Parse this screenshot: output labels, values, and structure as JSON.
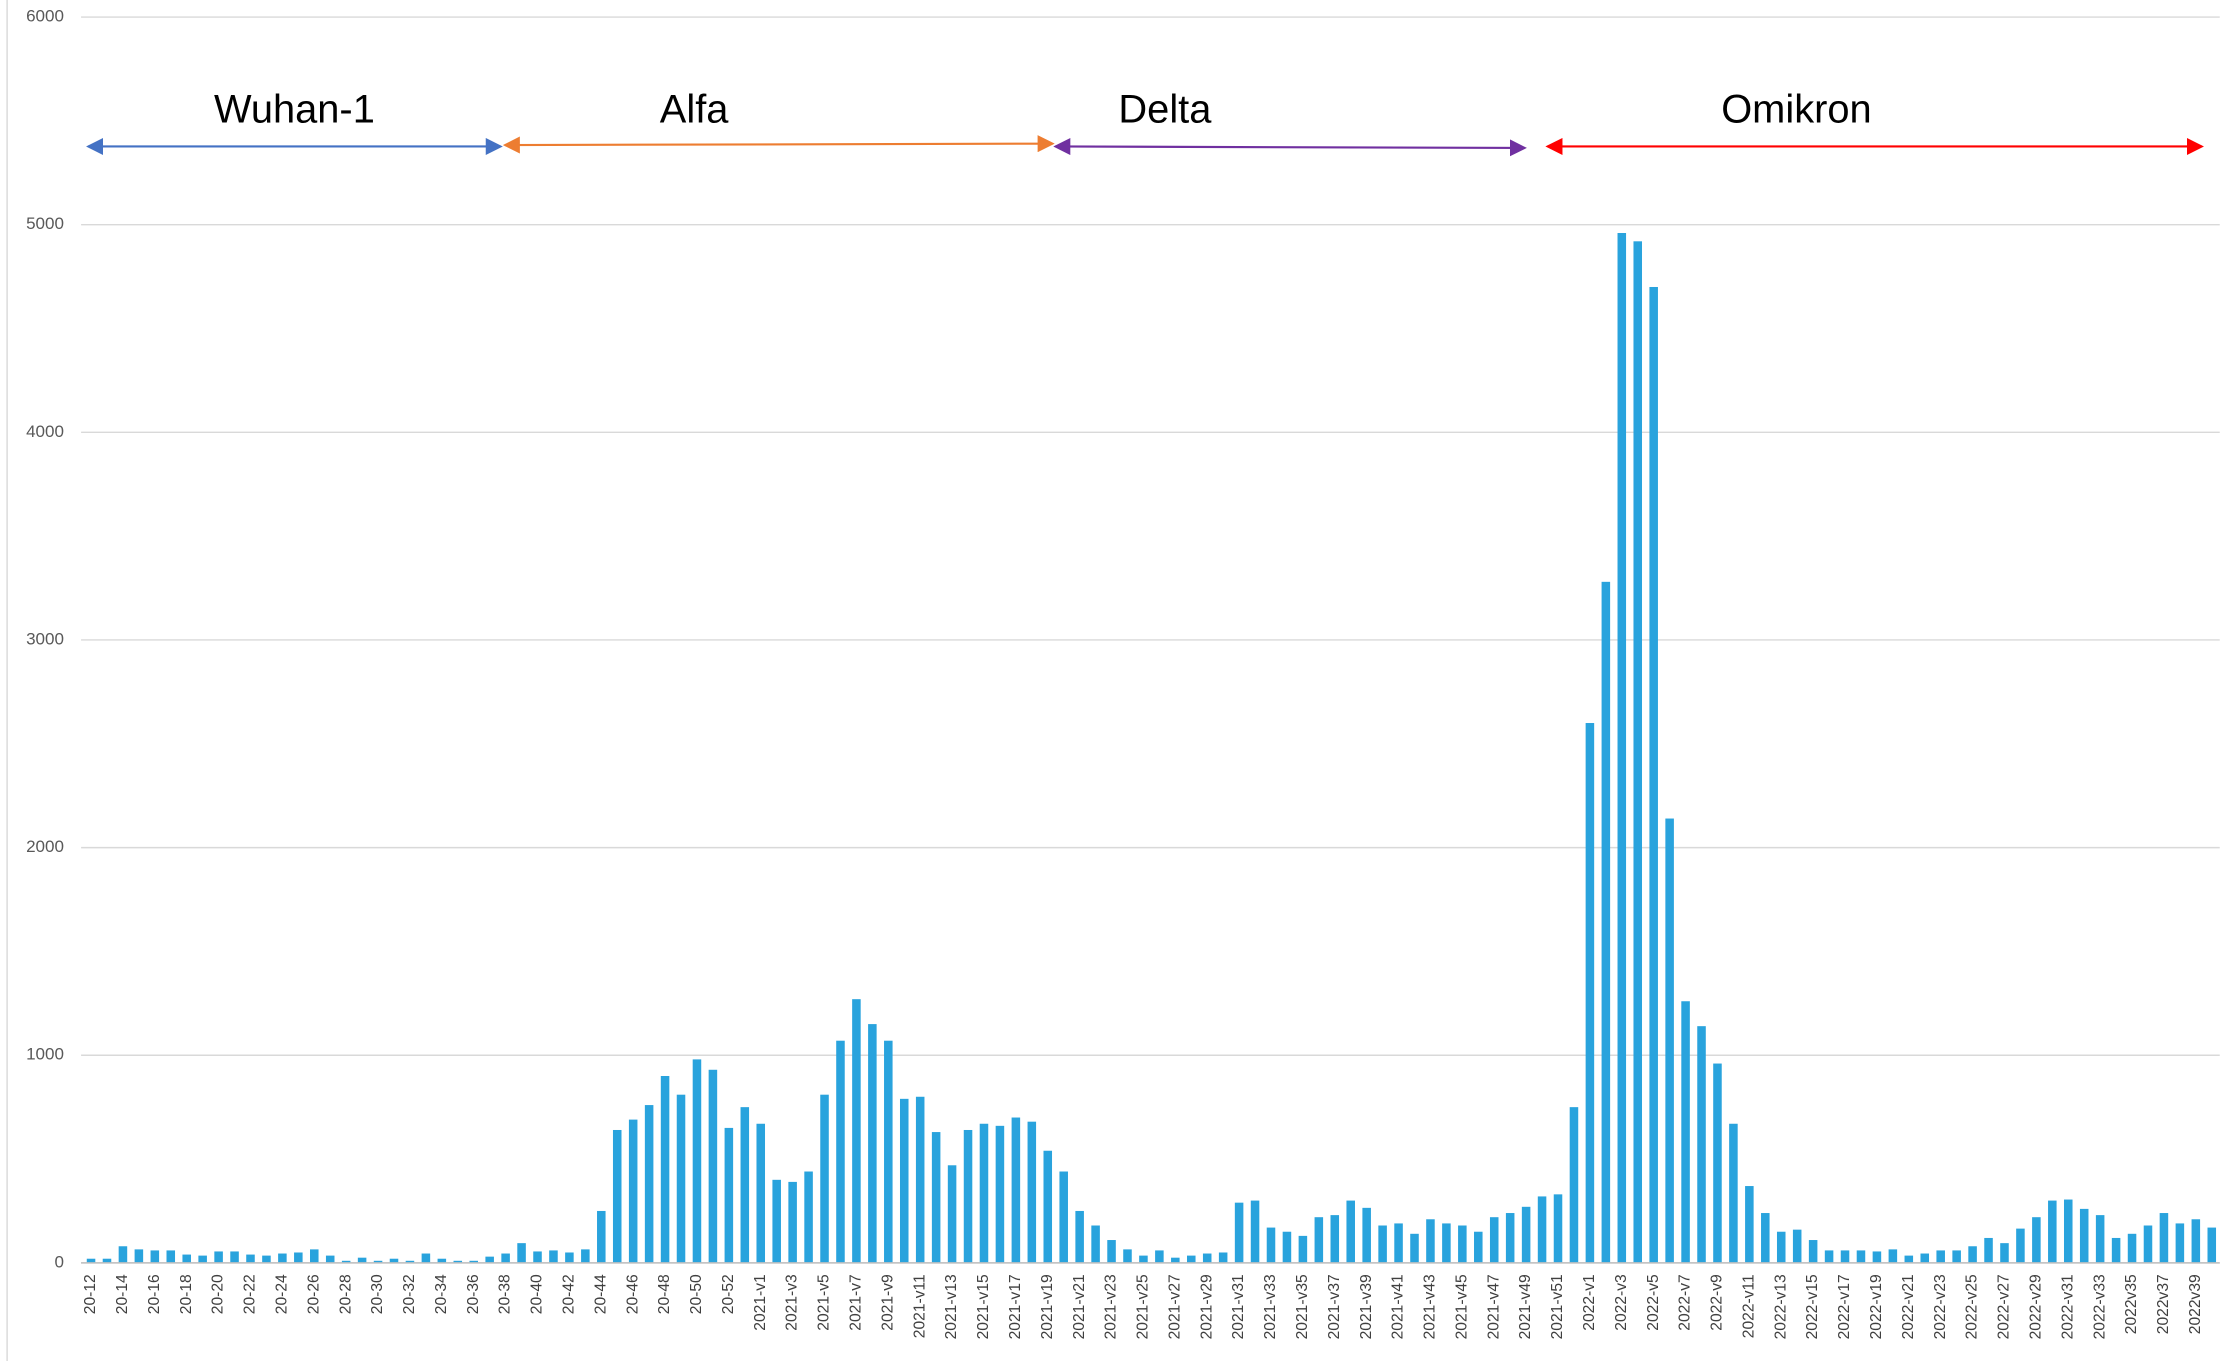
{
  "chart_data": {
    "type": "bar",
    "categories": [
      "20-12",
      null,
      "20-14",
      null,
      "20-16",
      null,
      "20-18",
      null,
      "20-20",
      null,
      "20-22",
      null,
      "20-24",
      null,
      "20-26",
      null,
      "20-28",
      null,
      "20-30",
      null,
      "20-32",
      null,
      "20-34",
      null,
      "20-36",
      null,
      "20-38",
      null,
      "20-40",
      null,
      "20-42",
      null,
      "20-44",
      null,
      "20-46",
      null,
      "20-48",
      null,
      "20-50",
      null,
      "20-52",
      null,
      "2021-v1",
      null,
      "2021-v3",
      null,
      "2021-v5",
      null,
      "2021-v7",
      null,
      "2021-v9",
      null,
      "2021-v11",
      null,
      "2021-v13",
      null,
      "2021-v15",
      null,
      "2021-v17",
      null,
      "2021-v19",
      null,
      "2021-v21",
      null,
      "2021-v23",
      null,
      "2021-v25",
      null,
      "2021-v27",
      null,
      "2021-v29",
      null,
      "2021-v31",
      null,
      "2021-v33",
      null,
      "2021-v35",
      null,
      "2021-v37",
      null,
      "2021-v39",
      null,
      "2021-v41",
      null,
      "2021-v43",
      null,
      "2021-v45",
      null,
      "2021-v47",
      null,
      "2021-v49",
      null,
      "2021-v51",
      null,
      "2022-v1",
      null,
      "2022-v3",
      null,
      "2022-v5",
      null,
      "2022-v7",
      null,
      "2022-v9",
      null,
      "2022-v11",
      null,
      "2022-v13",
      null,
      "2022-v15",
      null,
      "2022-v17",
      null,
      "2022-v19",
      null,
      "2022-v21",
      null,
      "2022-v23",
      null,
      "2022-v25",
      null,
      "2022-v27",
      null,
      "2022-v29",
      null,
      "2022-v31",
      null,
      "2022-v33",
      null,
      "2022v35",
      null,
      "2022v37",
      null,
      "2022v39",
      null
    ],
    "values": [
      20,
      20,
      80,
      65,
      60,
      60,
      40,
      35,
      55,
      55,
      40,
      35,
      45,
      50,
      65,
      35,
      10,
      25,
      10,
      20,
      10,
      45,
      20,
      10,
      10,
      30,
      45,
      95,
      55,
      60,
      50,
      65,
      250,
      640,
      690,
      760,
      900,
      810,
      980,
      930,
      650,
      750,
      670,
      400,
      390,
      440,
      810,
      1070,
      1270,
      1150,
      1070,
      790,
      800,
      630,
      470,
      640,
      670,
      660,
      700,
      680,
      540,
      440,
      250,
      180,
      110,
      65,
      35,
      60,
      25,
      35,
      45,
      50,
      290,
      300,
      170,
      150,
      130,
      220,
      230,
      300,
      265,
      180,
      190,
      140,
      210,
      190,
      180,
      150,
      220,
      240,
      270,
      320,
      330,
      750,
      2600,
      3280,
      4960,
      4920,
      4700,
      2140,
      1260,
      1140,
      960,
      670,
      370,
      240,
      150,
      160,
      110,
      60,
      60,
      60,
      55,
      65,
      35,
      45,
      60,
      60,
      80,
      120,
      95,
      165,
      220,
      300,
      305,
      260,
      230,
      120,
      140,
      180,
      240,
      190,
      210,
      170
    ],
    "color": "#29a3dd",
    "ylim": [
      0,
      6000
    ],
    "yticks": [
      0,
      1000,
      2000,
      3000,
      4000,
      5000,
      6000
    ],
    "grid": true,
    "annotations": [
      {
        "text": "Wuhan-1",
        "color": "#4472c4"
      },
      {
        "text": "Alfa",
        "color": "#ed7d31"
      },
      {
        "text": "Delta",
        "color": "#7030a0"
      },
      {
        "text": "Omikron",
        "color": "#ff0000"
      }
    ]
  }
}
